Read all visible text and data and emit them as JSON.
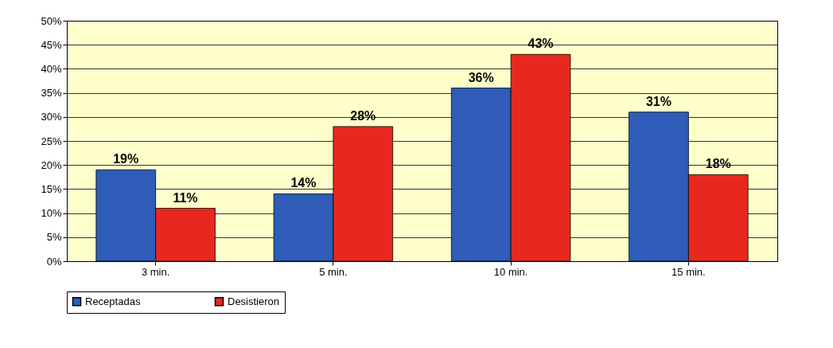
{
  "chart_data": {
    "type": "bar",
    "categories": [
      "3 min.",
      "5 min.",
      "10 min.",
      "15 min."
    ],
    "series": [
      {
        "name": "Receptadas",
        "color": "#2e5cb8",
        "values": [
          19,
          14,
          36,
          31
        ],
        "value_labels": [
          "19%",
          "14%",
          "36%",
          "31%"
        ]
      },
      {
        "name": "Desistieron",
        "color": "#e8281e",
        "values": [
          11,
          28,
          43,
          18
        ],
        "value_labels": [
          "11%",
          "28%",
          "43%",
          "18%"
        ]
      }
    ],
    "ylim": [
      0,
      50
    ],
    "yticks": [
      {
        "value": 0,
        "label": "0%"
      },
      {
        "value": 5,
        "label": "5%"
      },
      {
        "value": 10,
        "label": "10%"
      },
      {
        "value": 15,
        "label": "15%"
      },
      {
        "value": 20,
        "label": "20%"
      },
      {
        "value": 25,
        "label": "25%"
      },
      {
        "value": 30,
        "label": "30%"
      },
      {
        "value": 35,
        "label": "35%"
      },
      {
        "value": 40,
        "label": "40%"
      },
      {
        "value": 45,
        "label": "45%"
      },
      {
        "value": 50,
        "label": "50%"
      }
    ],
    "grid": "y",
    "legend": "bottom"
  }
}
